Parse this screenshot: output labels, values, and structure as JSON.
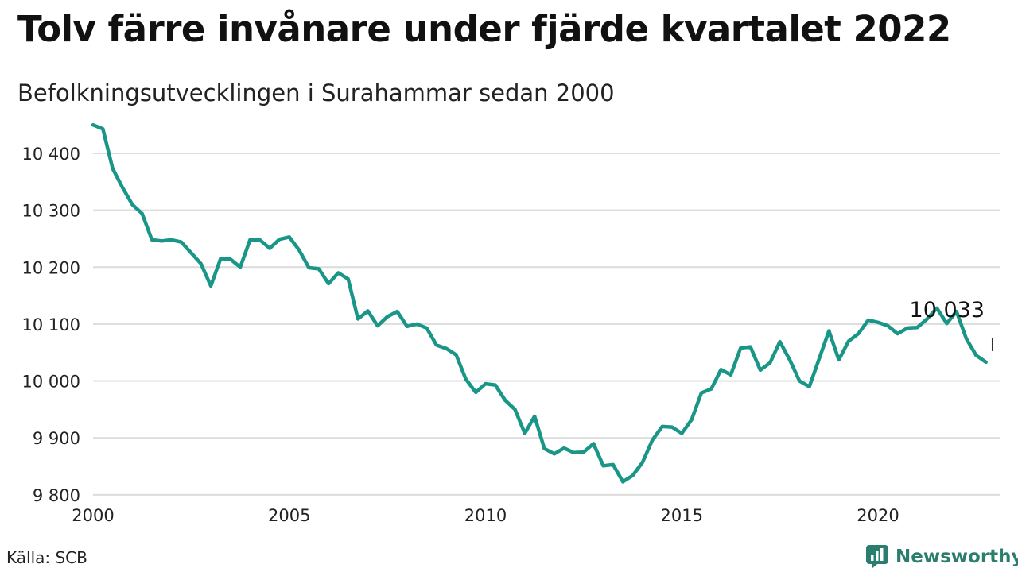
{
  "title": "Tolv färre invånare under fjärde kvartalet 2022",
  "subtitle": "Befolkningsutvecklingen i Surahammar sedan 2000",
  "source": "Källa: SCB",
  "brand": "Newsworthy",
  "colors": {
    "line": "#1a9688",
    "grid": "#dcdcdc",
    "brand": "#2b7d6d"
  },
  "chart_data": {
    "type": "line",
    "title": "Tolv färre invånare under fjärde kvartalet 2022",
    "subtitle": "Befolkningsutvecklingen i Surahammar sedan 2000",
    "xlabel": "",
    "ylabel": "",
    "xlim": [
      2000,
      2023.1
    ],
    "ylim": [
      9790,
      10460
    ],
    "grid": true,
    "x_ticks": [
      2000,
      2005,
      2010,
      2015,
      2020
    ],
    "x_tick_labels": [
      "2000",
      "2005",
      "2010",
      "2015",
      "2020"
    ],
    "y_ticks": [
      9800,
      9900,
      10000,
      10100,
      10200,
      10300,
      10400
    ],
    "y_tick_labels": [
      "9 800",
      "9 900",
      "10 000",
      "10 100",
      "10 200",
      "10 300",
      "10 400"
    ],
    "last_value_label": "10 033",
    "series": [
      {
        "x": [
          2000.0,
          2000.25,
          2000.5,
          2000.75,
          2001.0,
          2001.25,
          2001.5,
          2001.75,
          2002.0,
          2002.25,
          2002.5,
          2002.75,
          2003.0,
          2003.25,
          2003.5,
          2003.75,
          2004.0,
          2004.25,
          2004.5,
          2004.75,
          2005.0,
          2005.25,
          2005.5,
          2005.75,
          2006.0,
          2006.25,
          2006.5,
          2006.75,
          2007.0,
          2007.25,
          2007.5,
          2007.75,
          2008.0,
          2008.25,
          2008.5,
          2008.75,
          2009.0,
          2009.25,
          2009.5,
          2009.75,
          2010.0,
          2010.25,
          2010.5,
          2010.75,
          2011.0,
          2011.25,
          2011.5,
          2011.75,
          2012.0,
          2012.25,
          2012.5,
          2012.75,
          2013.0,
          2013.25,
          2013.5,
          2013.75,
          2014.0,
          2014.25,
          2014.5,
          2014.75,
          2015.0,
          2015.25,
          2015.5,
          2015.75,
          2016.0,
          2016.25,
          2016.5,
          2016.75,
          2017.0,
          2017.25,
          2017.5,
          2017.75,
          2018.0,
          2018.25,
          2018.5,
          2018.75,
          2019.0,
          2019.25,
          2019.5,
          2019.75,
          2020.0,
          2020.25,
          2020.5,
          2020.75,
          2021.0,
          2021.25,
          2021.5,
          2021.75,
          2022.0,
          2022.25,
          2022.5,
          2022.75
        ],
        "values": [
          10450,
          10443,
          10373,
          10340,
          10310,
          10294,
          10248,
          10246,
          10248,
          10244,
          10225,
          10206,
          10167,
          10215,
          10214,
          10200,
          10248,
          10248,
          10233,
          10249,
          10253,
          10230,
          10199,
          10197,
          10171,
          10190,
          10179,
          10109,
          10123,
          10097,
          10113,
          10122,
          10096,
          10100,
          10093,
          10063,
          10057,
          10046,
          10003,
          9980,
          9995,
          9993,
          9966,
          9950,
          9908,
          9938,
          9881,
          9872,
          9882,
          9874,
          9875,
          9890,
          9851,
          9853,
          9823,
          9834,
          9857,
          9896,
          9920,
          9919,
          9908,
          9932,
          9979,
          9986,
          10020,
          10011,
          10058,
          10060,
          10019,
          10032,
          10069,
          10037,
          10000,
          9990,
          10039,
          10088,
          10037,
          10070,
          10083,
          10107,
          10103,
          10097,
          10083,
          10093,
          10094,
          10109,
          10128,
          10101,
          10122,
          10074,
          10045,
          10033
        ]
      }
    ]
  }
}
